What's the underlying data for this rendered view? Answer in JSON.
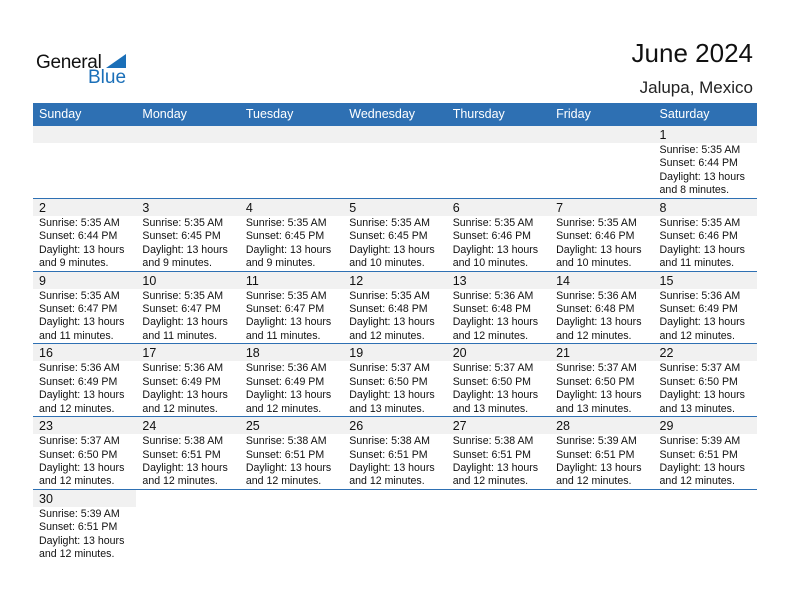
{
  "logo": {
    "general": "General",
    "blue": "Blue"
  },
  "title": "June 2024",
  "location": "Jalupa, Mexico",
  "weekdays": [
    "Sunday",
    "Monday",
    "Tuesday",
    "Wednesday",
    "Thursday",
    "Friday",
    "Saturday"
  ],
  "accent": "#2e70b3",
  "days": [
    {
      "d": "1",
      "rise": "Sunrise: 5:35 AM",
      "set": "Sunset: 6:44 PM",
      "dl1": "Daylight: 13 hours",
      "dl2": "and 8 minutes."
    },
    {
      "d": "2",
      "rise": "Sunrise: 5:35 AM",
      "set": "Sunset: 6:44 PM",
      "dl1": "Daylight: 13 hours",
      "dl2": "and 9 minutes."
    },
    {
      "d": "3",
      "rise": "Sunrise: 5:35 AM",
      "set": "Sunset: 6:45 PM",
      "dl1": "Daylight: 13 hours",
      "dl2": "and 9 minutes."
    },
    {
      "d": "4",
      "rise": "Sunrise: 5:35 AM",
      "set": "Sunset: 6:45 PM",
      "dl1": "Daylight: 13 hours",
      "dl2": "and 9 minutes."
    },
    {
      "d": "5",
      "rise": "Sunrise: 5:35 AM",
      "set": "Sunset: 6:45 PM",
      "dl1": "Daylight: 13 hours",
      "dl2": "and 10 minutes."
    },
    {
      "d": "6",
      "rise": "Sunrise: 5:35 AM",
      "set": "Sunset: 6:46 PM",
      "dl1": "Daylight: 13 hours",
      "dl2": "and 10 minutes."
    },
    {
      "d": "7",
      "rise": "Sunrise: 5:35 AM",
      "set": "Sunset: 6:46 PM",
      "dl1": "Daylight: 13 hours",
      "dl2": "and 10 minutes."
    },
    {
      "d": "8",
      "rise": "Sunrise: 5:35 AM",
      "set": "Sunset: 6:46 PM",
      "dl1": "Daylight: 13 hours",
      "dl2": "and 11 minutes."
    },
    {
      "d": "9",
      "rise": "Sunrise: 5:35 AM",
      "set": "Sunset: 6:47 PM",
      "dl1": "Daylight: 13 hours",
      "dl2": "and 11 minutes."
    },
    {
      "d": "10",
      "rise": "Sunrise: 5:35 AM",
      "set": "Sunset: 6:47 PM",
      "dl1": "Daylight: 13 hours",
      "dl2": "and 11 minutes."
    },
    {
      "d": "11",
      "rise": "Sunrise: 5:35 AM",
      "set": "Sunset: 6:47 PM",
      "dl1": "Daylight: 13 hours",
      "dl2": "and 11 minutes."
    },
    {
      "d": "12",
      "rise": "Sunrise: 5:35 AM",
      "set": "Sunset: 6:48 PM",
      "dl1": "Daylight: 13 hours",
      "dl2": "and 12 minutes."
    },
    {
      "d": "13",
      "rise": "Sunrise: 5:36 AM",
      "set": "Sunset: 6:48 PM",
      "dl1": "Daylight: 13 hours",
      "dl2": "and 12 minutes."
    },
    {
      "d": "14",
      "rise": "Sunrise: 5:36 AM",
      "set": "Sunset: 6:48 PM",
      "dl1": "Daylight: 13 hours",
      "dl2": "and 12 minutes."
    },
    {
      "d": "15",
      "rise": "Sunrise: 5:36 AM",
      "set": "Sunset: 6:49 PM",
      "dl1": "Daylight: 13 hours",
      "dl2": "and 12 minutes."
    },
    {
      "d": "16",
      "rise": "Sunrise: 5:36 AM",
      "set": "Sunset: 6:49 PM",
      "dl1": "Daylight: 13 hours",
      "dl2": "and 12 minutes."
    },
    {
      "d": "17",
      "rise": "Sunrise: 5:36 AM",
      "set": "Sunset: 6:49 PM",
      "dl1": "Daylight: 13 hours",
      "dl2": "and 12 minutes."
    },
    {
      "d": "18",
      "rise": "Sunrise: 5:36 AM",
      "set": "Sunset: 6:49 PM",
      "dl1": "Daylight: 13 hours",
      "dl2": "and 12 minutes."
    },
    {
      "d": "19",
      "rise": "Sunrise: 5:37 AM",
      "set": "Sunset: 6:50 PM",
      "dl1": "Daylight: 13 hours",
      "dl2": "and 13 minutes."
    },
    {
      "d": "20",
      "rise": "Sunrise: 5:37 AM",
      "set": "Sunset: 6:50 PM",
      "dl1": "Daylight: 13 hours",
      "dl2": "and 13 minutes."
    },
    {
      "d": "21",
      "rise": "Sunrise: 5:37 AM",
      "set": "Sunset: 6:50 PM",
      "dl1": "Daylight: 13 hours",
      "dl2": "and 13 minutes."
    },
    {
      "d": "22",
      "rise": "Sunrise: 5:37 AM",
      "set": "Sunset: 6:50 PM",
      "dl1": "Daylight: 13 hours",
      "dl2": "and 13 minutes."
    },
    {
      "d": "23",
      "rise": "Sunrise: 5:37 AM",
      "set": "Sunset: 6:50 PM",
      "dl1": "Daylight: 13 hours",
      "dl2": "and 12 minutes."
    },
    {
      "d": "24",
      "rise": "Sunrise: 5:38 AM",
      "set": "Sunset: 6:51 PM",
      "dl1": "Daylight: 13 hours",
      "dl2": "and 12 minutes."
    },
    {
      "d": "25",
      "rise": "Sunrise: 5:38 AM",
      "set": "Sunset: 6:51 PM",
      "dl1": "Daylight: 13 hours",
      "dl2": "and 12 minutes."
    },
    {
      "d": "26",
      "rise": "Sunrise: 5:38 AM",
      "set": "Sunset: 6:51 PM",
      "dl1": "Daylight: 13 hours",
      "dl2": "and 12 minutes."
    },
    {
      "d": "27",
      "rise": "Sunrise: 5:38 AM",
      "set": "Sunset: 6:51 PM",
      "dl1": "Daylight: 13 hours",
      "dl2": "and 12 minutes."
    },
    {
      "d": "28",
      "rise": "Sunrise: 5:39 AM",
      "set": "Sunset: 6:51 PM",
      "dl1": "Daylight: 13 hours",
      "dl2": "and 12 minutes."
    },
    {
      "d": "29",
      "rise": "Sunrise: 5:39 AM",
      "set": "Sunset: 6:51 PM",
      "dl1": "Daylight: 13 hours",
      "dl2": "and 12 minutes."
    },
    {
      "d": "30",
      "rise": "Sunrise: 5:39 AM",
      "set": "Sunset: 6:51 PM",
      "dl1": "Daylight: 13 hours",
      "dl2": "and 12 minutes."
    }
  ]
}
